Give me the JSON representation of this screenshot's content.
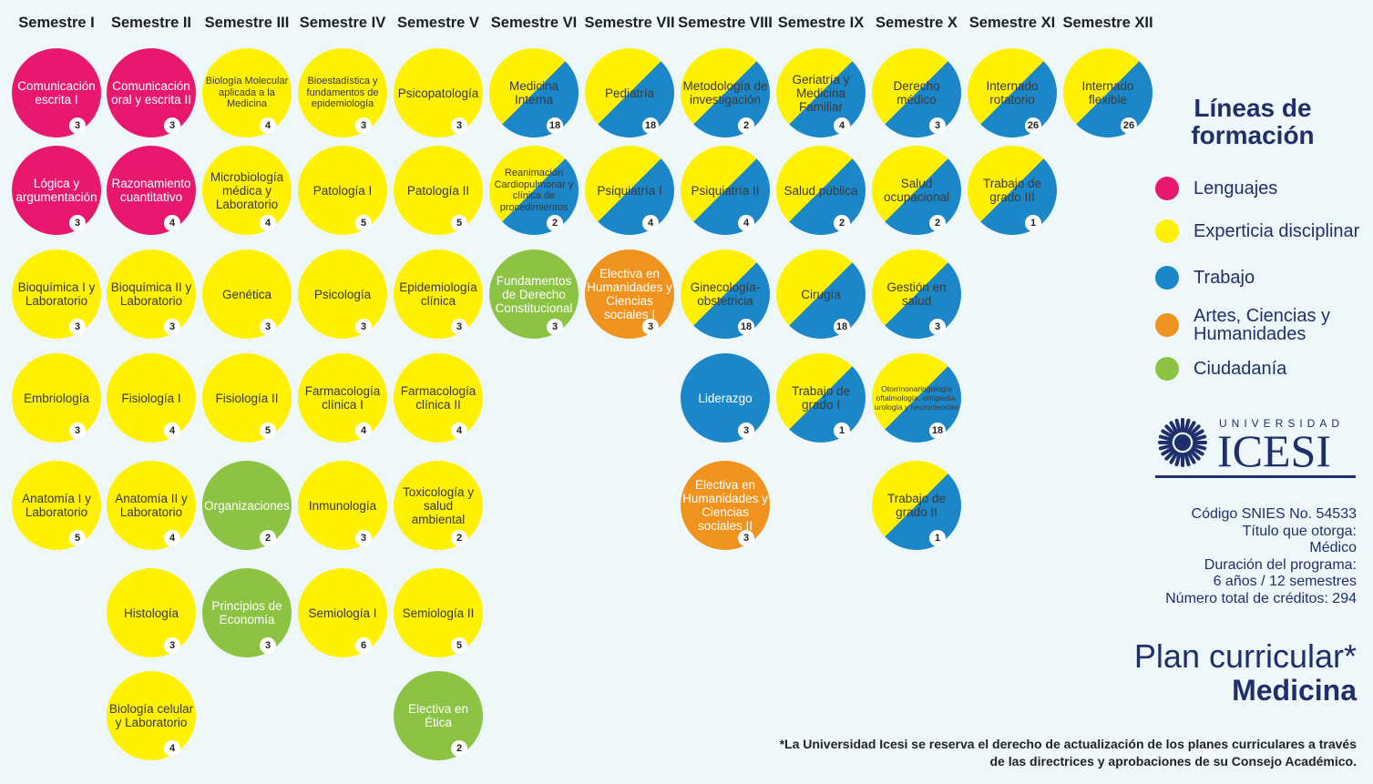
{
  "colors": {
    "Lenguajes": "#e8186f",
    "Experticia disciplinar": "#fff100",
    "Trabajo": "#1b86c8",
    "Artes, Ciencias y Humanidades": "#f0931e",
    "Ciudadanía": "#8cc342"
  },
  "semesters": [
    "Semestre I",
    "Semestre II",
    "Semestre III",
    "Semestre IV",
    "Semestre V",
    "Semestre VI",
    "Semestre VII",
    "Semestre VIII",
    "Semestre IX",
    "Semestre X",
    "Semestre XI",
    "Semestre XII"
  ],
  "courses": [
    {
      "sem": 0,
      "row": 0,
      "name": "Comunicación escrita I",
      "credits": "3",
      "line": "Lenguajes"
    },
    {
      "sem": 0,
      "row": 1,
      "name": "Lógica y argumentación",
      "credits": "3",
      "line": "Lenguajes"
    },
    {
      "sem": 0,
      "row": 2,
      "name": "Bioquímica I y Laboratorio",
      "credits": "3",
      "line": "Experticia disciplinar"
    },
    {
      "sem": 0,
      "row": 3,
      "name": "Embriología",
      "credits": "3",
      "line": "Experticia disciplinar"
    },
    {
      "sem": 0,
      "row": 4,
      "name": "Anatomía I y Laboratorio",
      "credits": "5",
      "line": "Experticia disciplinar"
    },
    {
      "sem": 1,
      "row": 0,
      "name": "Comunicación oral y escrita II",
      "credits": "3",
      "line": "Lenguajes"
    },
    {
      "sem": 1,
      "row": 1,
      "name": "Razonamiento cuantitativo",
      "credits": "4",
      "line": "Lenguajes"
    },
    {
      "sem": 1,
      "row": 2,
      "name": "Bioquímica II y Laboratorio",
      "credits": "3",
      "line": "Experticia disciplinar"
    },
    {
      "sem": 1,
      "row": 3,
      "name": "Fisiología I",
      "credits": "4",
      "line": "Experticia disciplinar"
    },
    {
      "sem": 1,
      "row": 4,
      "name": "Anatomía II y Laboratorio",
      "credits": "4",
      "line": "Experticia disciplinar"
    },
    {
      "sem": 1,
      "row": 5,
      "name": "Histología",
      "credits": "3",
      "line": "Experticia disciplinar"
    },
    {
      "sem": 1,
      "row": 6,
      "name": "Biología celular y Laboratorio",
      "credits": "4",
      "line": "Experticia disciplinar"
    },
    {
      "sem": 2,
      "row": 0,
      "name": "Biología Molecular aplicada a la Medicina",
      "credits": "4",
      "line": "Experticia disciplinar",
      "size": "small"
    },
    {
      "sem": 2,
      "row": 1,
      "name": "Microbiología médica y Laboratorio",
      "credits": "4",
      "line": "Experticia disciplinar"
    },
    {
      "sem": 2,
      "row": 2,
      "name": "Genética",
      "credits": "3",
      "line": "Experticia disciplinar"
    },
    {
      "sem": 2,
      "row": 3,
      "name": "Fisiología II",
      "credits": "5",
      "line": "Experticia disciplinar"
    },
    {
      "sem": 2,
      "row": 4,
      "name": "Organizaciones",
      "credits": "2",
      "line": "Ciudadanía"
    },
    {
      "sem": 2,
      "row": 5,
      "name": "Principios de Economía",
      "credits": "3",
      "line": "Ciudadanía"
    },
    {
      "sem": 3,
      "row": 0,
      "name": "Bioestadística y fundamentos de epidemiología",
      "credits": "3",
      "line": "Experticia disciplinar",
      "size": "small"
    },
    {
      "sem": 3,
      "row": 1,
      "name": "Patología I",
      "credits": "5",
      "line": "Experticia disciplinar"
    },
    {
      "sem": 3,
      "row": 2,
      "name": "Psicología",
      "credits": "3",
      "line": "Experticia disciplinar"
    },
    {
      "sem": 3,
      "row": 3,
      "name": "Farmacología clínica I",
      "credits": "4",
      "line": "Experticia disciplinar"
    },
    {
      "sem": 3,
      "row": 4,
      "name": "Inmunología",
      "credits": "3",
      "line": "Experticia disciplinar"
    },
    {
      "sem": 3,
      "row": 5,
      "name": "Semiología I",
      "credits": "6",
      "line": "Experticia disciplinar"
    },
    {
      "sem": 4,
      "row": 0,
      "name": "Psicopatología",
      "credits": "3",
      "line": "Experticia disciplinar"
    },
    {
      "sem": 4,
      "row": 1,
      "name": "Patología II",
      "credits": "5",
      "line": "Experticia disciplinar"
    },
    {
      "sem": 4,
      "row": 2,
      "name": "Epidemiología clínica",
      "credits": "3",
      "line": "Experticia disciplinar"
    },
    {
      "sem": 4,
      "row": 3,
      "name": "Farmacología clínica II",
      "credits": "4",
      "line": "Experticia disciplinar"
    },
    {
      "sem": 4,
      "row": 4,
      "name": "Toxicología y salud ambiental",
      "credits": "2",
      "line": "Experticia disciplinar"
    },
    {
      "sem": 4,
      "row": 5,
      "name": "Semiología II",
      "credits": "5",
      "line": "Experticia disciplinar"
    },
    {
      "sem": 4,
      "row": 6,
      "name": "Electiva en Ética",
      "credits": "2",
      "line": "Ciudadanía"
    },
    {
      "sem": 5,
      "row": 0,
      "name": "Medicina Interna",
      "credits": "18",
      "line": "Experticia disciplinar",
      "split": true
    },
    {
      "sem": 5,
      "row": 1,
      "name": "Reanimación Cardiopulmonar y clínica de procedimientos",
      "credits": "2",
      "line": "Experticia disciplinar",
      "split": true,
      "size": "small"
    },
    {
      "sem": 5,
      "row": 2,
      "name": "Fundamentos de Derecho Constitucional",
      "credits": "3",
      "line": "Ciudadanía"
    },
    {
      "sem": 6,
      "row": 0,
      "name": "Pediatría",
      "credits": "18",
      "line": "Experticia disciplinar",
      "split": true
    },
    {
      "sem": 6,
      "row": 1,
      "name": "Psiquiatría I",
      "credits": "4",
      "line": "Experticia disciplinar",
      "split": true
    },
    {
      "sem": 6,
      "row": 2,
      "name": "Electiva en Humanidades y Ciencias sociales I",
      "credits": "3",
      "line": "Artes, Ciencias y Humanidades"
    },
    {
      "sem": 7,
      "row": 0,
      "name": "Metodología de investigación",
      "credits": "2",
      "line": "Experticia disciplinar",
      "split": true
    },
    {
      "sem": 7,
      "row": 1,
      "name": "Psiquiatría II",
      "credits": "4",
      "line": "Experticia disciplinar",
      "split": true
    },
    {
      "sem": 7,
      "row": 2,
      "name": "Ginecología-obstetricia",
      "credits": "18",
      "line": "Experticia disciplinar",
      "split": true
    },
    {
      "sem": 7,
      "row": 3,
      "name": "Liderazgo",
      "credits": "3",
      "line": "Trabajo"
    },
    {
      "sem": 7,
      "row": 4,
      "name": "Electiva en Humanidades y Ciencias sociales II",
      "credits": "3",
      "line": "Artes, Ciencias y Humanidades"
    },
    {
      "sem": 8,
      "row": 0,
      "name": "Geriatría y Medicina Familiar",
      "credits": "4",
      "line": "Experticia disciplinar",
      "split": true
    },
    {
      "sem": 8,
      "row": 1,
      "name": "Salud pública",
      "credits": "2",
      "line": "Experticia disciplinar",
      "split": true
    },
    {
      "sem": 8,
      "row": 2,
      "name": "Cirugía",
      "credits": "18",
      "line": "Experticia disciplinar",
      "split": true
    },
    {
      "sem": 8,
      "row": 3,
      "name": "Trabajo de grado I",
      "credits": "1",
      "line": "Experticia disciplinar",
      "split": true
    },
    {
      "sem": 9,
      "row": 0,
      "name": "Derecho médico",
      "credits": "3",
      "line": "Experticia disciplinar",
      "split": true
    },
    {
      "sem": 9,
      "row": 1,
      "name": "Salud ocupacional",
      "credits": "2",
      "line": "Experticia disciplinar",
      "split": true
    },
    {
      "sem": 9,
      "row": 2,
      "name": "Gestión en salud",
      "credits": "3",
      "line": "Experticia disciplinar",
      "split": true
    },
    {
      "sem": 9,
      "row": 3,
      "name": "Otorrinonaringología oftalmología, ortopedia, urología y neurociencias",
      "credits": "18",
      "line": "Experticia disciplinar",
      "split": true,
      "size": "tiny"
    },
    {
      "sem": 9,
      "row": 4,
      "name": "Trabajo de grado II",
      "credits": "1",
      "line": "Experticia disciplinar",
      "split": true
    },
    {
      "sem": 10,
      "row": 0,
      "name": "Internado rotatorio",
      "credits": "26",
      "line": "Experticia disciplinar",
      "split": true
    },
    {
      "sem": 10,
      "row": 1,
      "name": "Trabajo de grado III",
      "credits": "1",
      "line": "Experticia disciplinar",
      "split": true
    },
    {
      "sem": 11,
      "row": 0,
      "name": "Internado flexible",
      "credits": "26",
      "line": "Experticia disciplinar",
      "split": true
    }
  ],
  "legend": {
    "title": "Líneas de formación",
    "items": [
      {
        "label": "Lenguajes",
        "color": "#e8186f"
      },
      {
        "label": "Experticia disciplinar",
        "color": "#fff100"
      },
      {
        "label": "Trabajo",
        "color": "#1b86c8"
      },
      {
        "label": "Artes, Ciencias y Humanidades",
        "color": "#f0931e"
      },
      {
        "label": "Ciudadanía",
        "color": "#8cc342"
      }
    ]
  },
  "logo": {
    "top": "UNIVERSIDAD",
    "main": "ICESI"
  },
  "info": {
    "snies": "Código SNIES No. 54533",
    "titulo_label": "Título que otorga:",
    "titulo": "Médico",
    "duracion_label": "Duración del programa:",
    "duracion": "6 años / 12 semestres",
    "creditos": "Número total de créditos: 294"
  },
  "plan": {
    "line1": "Plan curricular*",
    "line2": "Medicina"
  },
  "footnote": {
    "line1": "*La Universidad Icesi se reserva el derecho de actualización de los planes curriculares a través",
    "line2": "de las directrices y aprobaciones de su Consejo Académico."
  }
}
